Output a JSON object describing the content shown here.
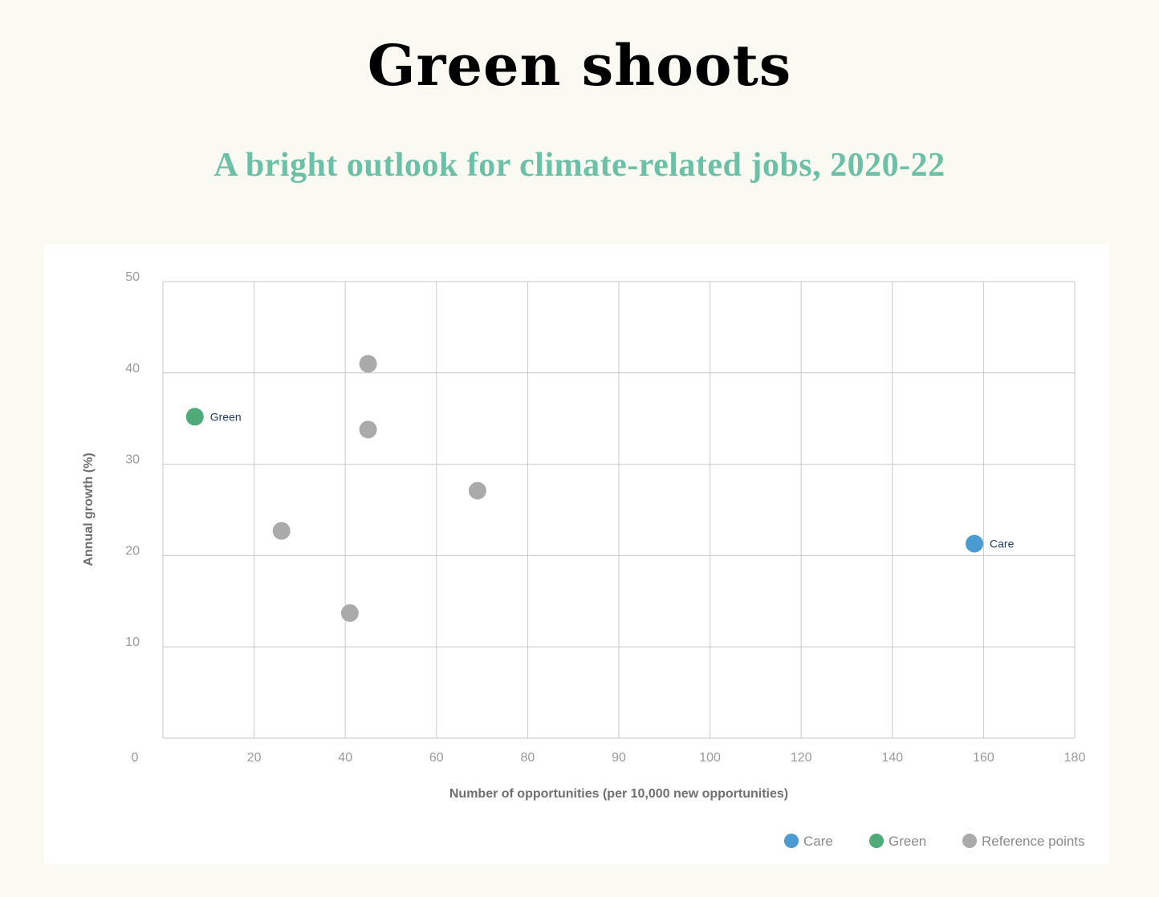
{
  "title": "Green shoots",
  "subtitle": "A bright outlook for climate-related jobs, 2020-22",
  "colors": {
    "background": "#fafaf2",
    "subtitle": "#6cc0a8",
    "care": "#4a9bd3",
    "green": "#4eaa78",
    "reference": "#aaaaaa"
  },
  "chart_data": {
    "type": "scatter",
    "xlabel": "Number of opportunities (per 10,000 new opportunities)",
    "ylabel": "Annual growth (%)",
    "x_ticks": [
      "0",
      "20",
      "40",
      "60",
      "80",
      "90",
      "100",
      "120",
      "140",
      "160",
      "180"
    ],
    "y_ticks": [
      "10",
      "20",
      "30",
      "40",
      "50"
    ],
    "ylim": [
      0,
      50
    ],
    "grid": true,
    "legend_position": "bottom-right",
    "series": [
      {
        "name": "Care",
        "color": "#4a9bd3",
        "points": [
          {
            "x": 158,
            "y": 21.3,
            "label": "Care"
          }
        ]
      },
      {
        "name": "Green",
        "color": "#4eaa78",
        "points": [
          {
            "x": 7,
            "y": 35.2,
            "label": "Green"
          }
        ]
      },
      {
        "name": "Reference points",
        "color": "#aaaaaa",
        "points": [
          {
            "x": 45,
            "y": 41.0
          },
          {
            "x": 45,
            "y": 33.8
          },
          {
            "x": 69,
            "y": 27.1
          },
          {
            "x": 26,
            "y": 22.7
          },
          {
            "x": 41,
            "y": 13.7
          }
        ]
      }
    ]
  }
}
